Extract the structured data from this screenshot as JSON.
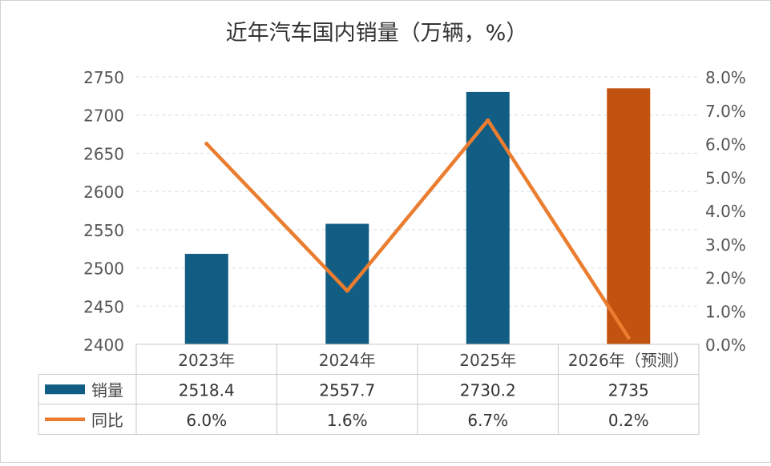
{
  "chart_data": {
    "type": "bar",
    "title": "近年汽车国内销量（万辆，%）",
    "categories": [
      "2023年",
      "2024年",
      "2025年",
      "2026年（预测）"
    ],
    "series": [
      {
        "name": "销量",
        "kind": "bar",
        "axis": "left",
        "values": [
          2518.4,
          2557.7,
          2730.2,
          2735
        ],
        "value_labels": [
          "2518.4",
          "2557.7",
          "2730.2",
          "2735"
        ],
        "colors": [
          "#115d84",
          "#115d84",
          "#115d84",
          "#c2520f"
        ]
      },
      {
        "name": "同比",
        "kind": "line",
        "axis": "right",
        "values": [
          6.0,
          1.6,
          6.7,
          0.2
        ],
        "value_labels": [
          "6.0%",
          "1.6%",
          "6.7%",
          "0.2%"
        ],
        "color": "#ea7d2f"
      }
    ],
    "y_left": {
      "lim": [
        2400,
        2750
      ],
      "ticks": [
        "2750",
        "2700",
        "2650",
        "2600",
        "2550",
        "2500",
        "2450",
        "2400"
      ]
    },
    "y_right": {
      "lim": [
        0,
        8
      ],
      "ticks": [
        "8.0%",
        "7.0%",
        "6.0%",
        "5.0%",
        "4.0%",
        "3.0%",
        "2.0%",
        "1.0%",
        "0.0%"
      ]
    },
    "grid": "horizontal dashed",
    "legend": "data table below chart"
  }
}
